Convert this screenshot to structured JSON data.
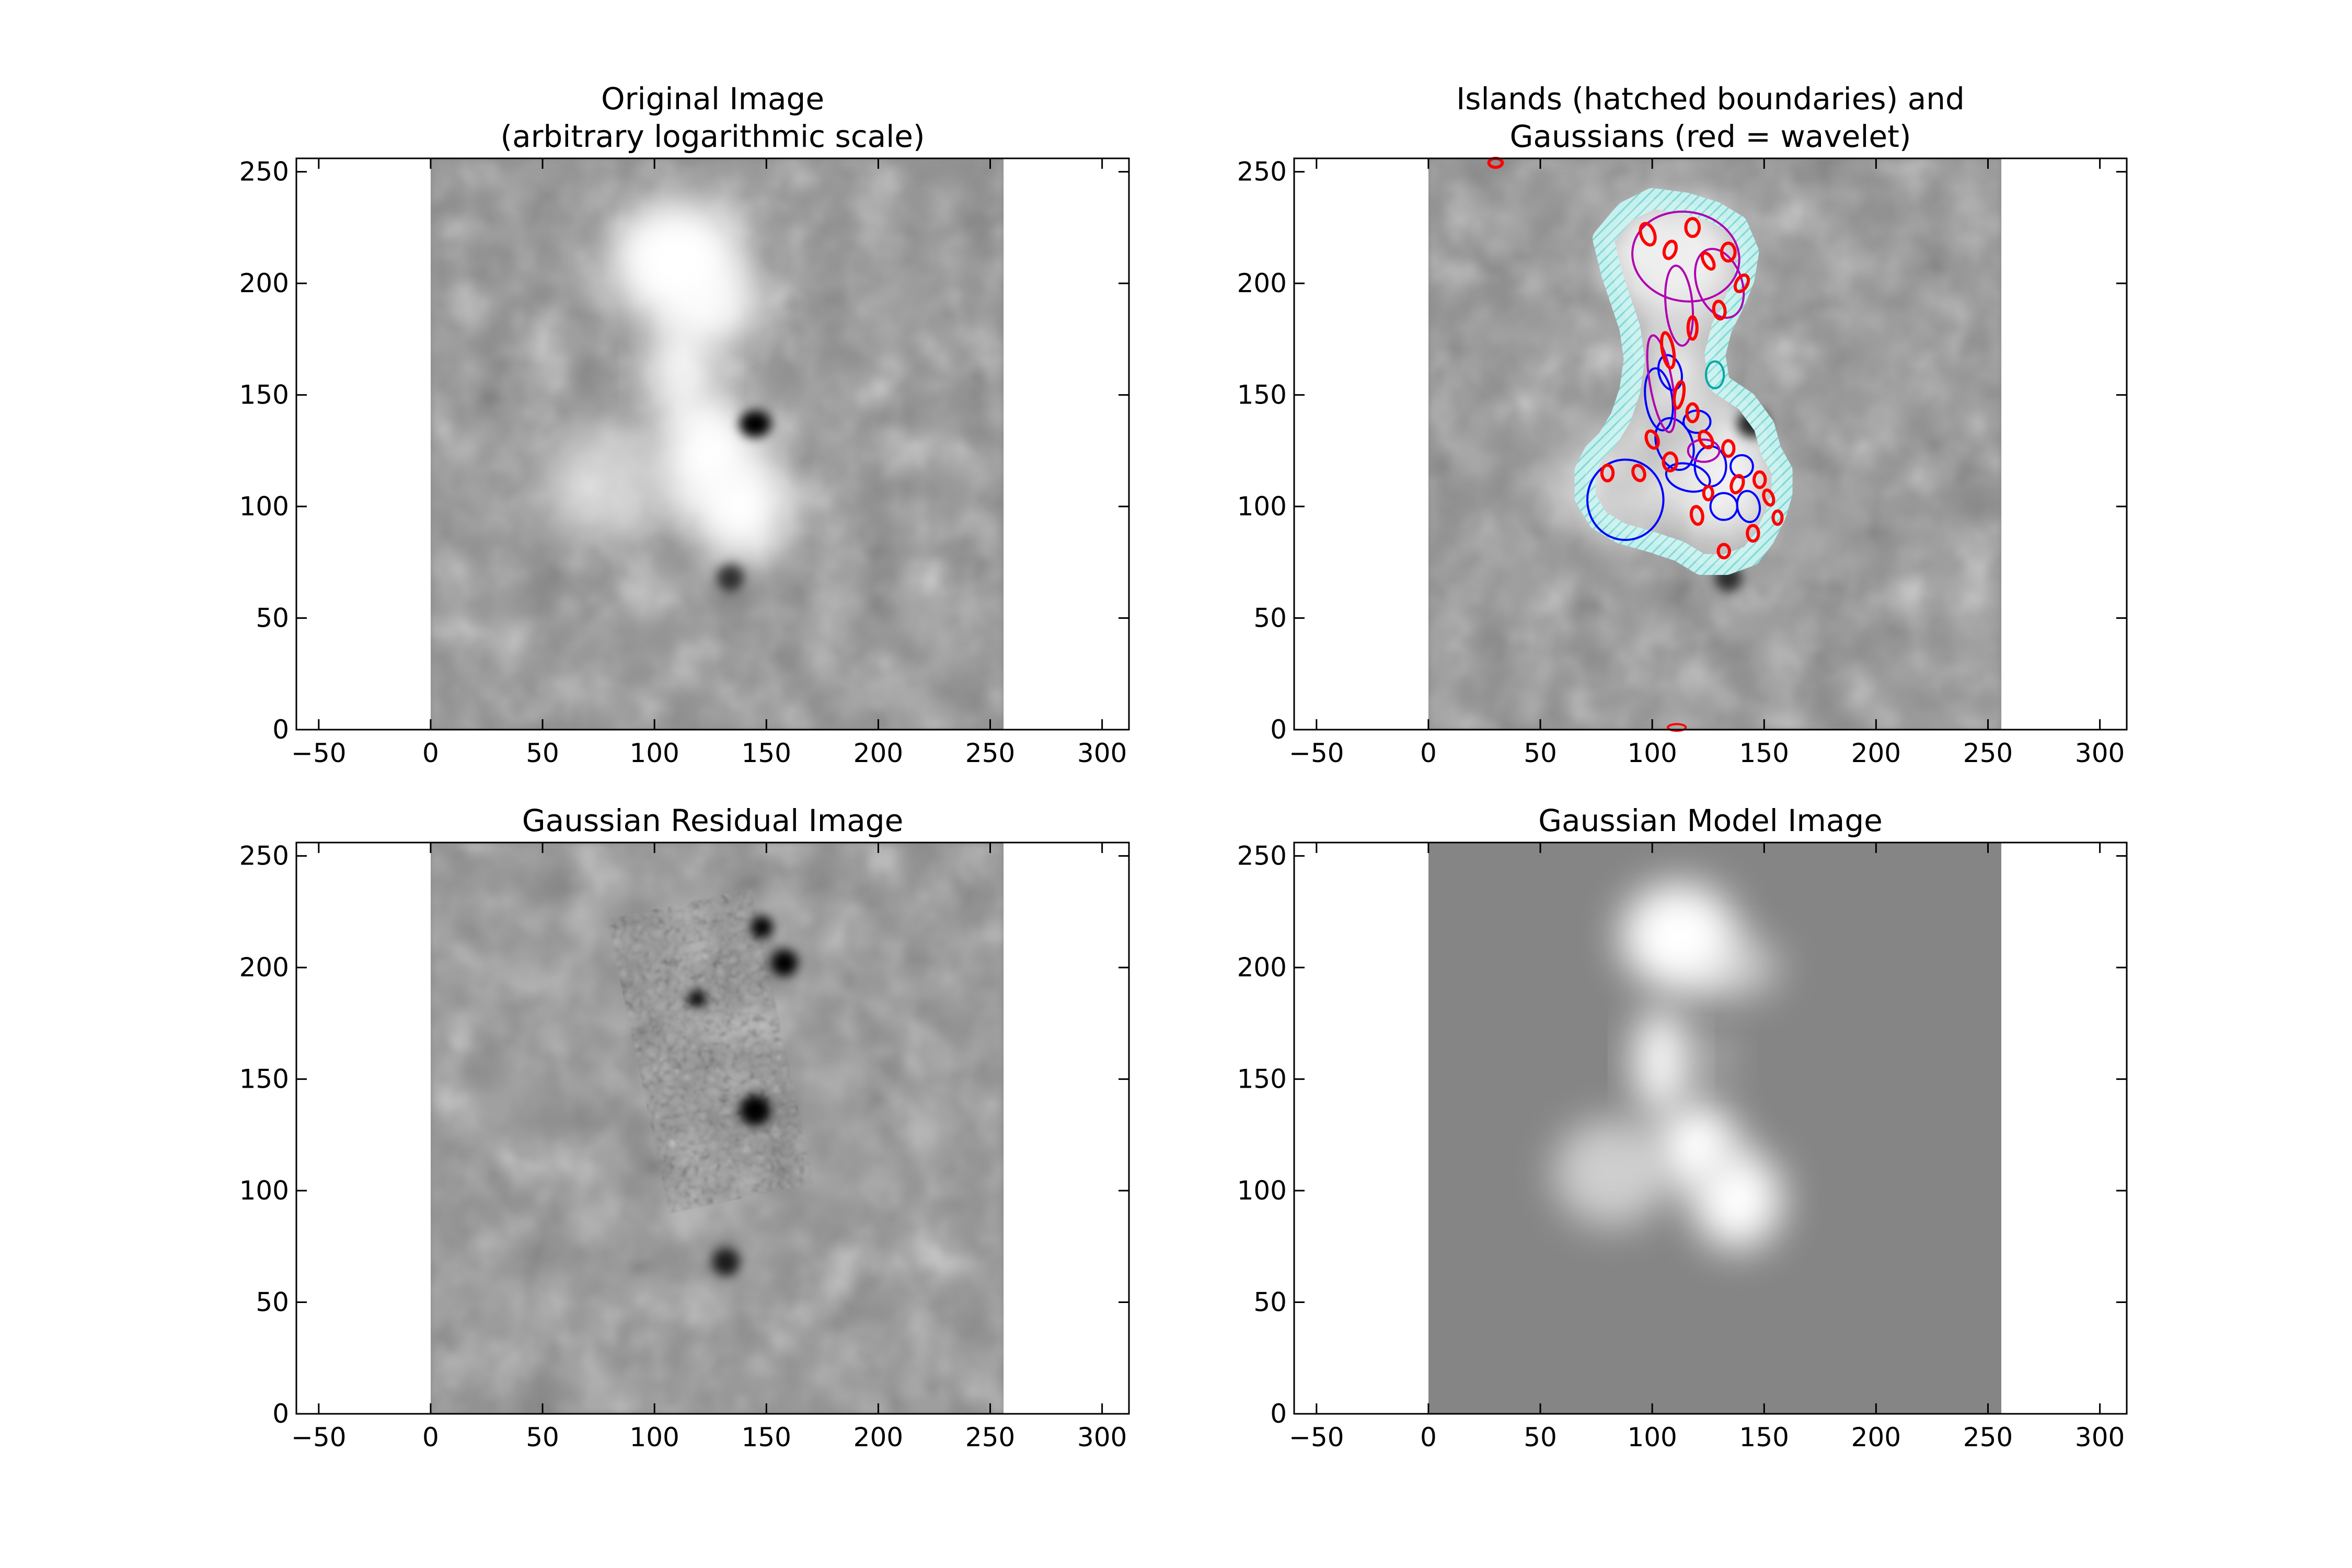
{
  "chart_data": [
    {
      "type": "heatmap",
      "title_lines": [
        "Original Image",
        "(arbitrary logarithmic scale)"
      ],
      "xlim": [
        -60,
        312
      ],
      "ylim": [
        0,
        256
      ],
      "image_extent": {
        "x": [
          0,
          256
        ],
        "y": [
          0,
          256
        ]
      },
      "xticks": [
        -50,
        0,
        50,
        100,
        150,
        200,
        250,
        300
      ],
      "yticks": [
        0,
        50,
        100,
        150,
        200,
        250
      ],
      "colormap": "gray",
      "background": "#8a8a8a",
      "features": [
        {
          "kind": "bright",
          "x": 110,
          "y": 210,
          "rx": 30,
          "ry": 28,
          "level": 1.0
        },
        {
          "kind": "bright",
          "x": 125,
          "y": 190,
          "rx": 22,
          "ry": 18,
          "level": 0.9
        },
        {
          "kind": "bright",
          "x": 112,
          "y": 160,
          "rx": 14,
          "ry": 24,
          "level": 0.95
        },
        {
          "kind": "bright",
          "x": 125,
          "y": 125,
          "rx": 22,
          "ry": 25,
          "level": 1.0
        },
        {
          "kind": "bright",
          "x": 138,
          "y": 100,
          "rx": 22,
          "ry": 24,
          "level": 1.0
        },
        {
          "kind": "bright",
          "x": 80,
          "y": 110,
          "rx": 28,
          "ry": 26,
          "level": 0.55
        },
        {
          "kind": "dark",
          "x": 145,
          "y": 137,
          "rx": 7,
          "ry": 6,
          "level": 1.0
        },
        {
          "kind": "dark",
          "x": 134,
          "y": 68,
          "rx": 6,
          "ry": 6,
          "level": 0.7
        }
      ],
      "overlays": []
    },
    {
      "type": "heatmap",
      "title_lines": [
        "Islands (hatched boundaries) and",
        "Gaussians (red = wavelet)"
      ],
      "xlim": [
        -60,
        312
      ],
      "ylim": [
        0,
        256
      ],
      "image_extent": {
        "x": [
          0,
          256
        ],
        "y": [
          0,
          256
        ]
      },
      "xticks": [
        -50,
        0,
        50,
        100,
        150,
        200,
        250,
        300
      ],
      "yticks": [
        0,
        50,
        100,
        150,
        200,
        250
      ],
      "colormap": "gray",
      "background": "#8a8a8a",
      "features": [
        {
          "kind": "bright",
          "x": 110,
          "y": 210,
          "rx": 30,
          "ry": 28,
          "level": 0.8
        },
        {
          "kind": "bright",
          "x": 112,
          "y": 160,
          "rx": 14,
          "ry": 24,
          "level": 0.75
        },
        {
          "kind": "bright",
          "x": 130,
          "y": 112,
          "rx": 25,
          "ry": 28,
          "level": 0.8
        },
        {
          "kind": "bright",
          "x": 80,
          "y": 110,
          "rx": 28,
          "ry": 26,
          "level": 0.45
        },
        {
          "kind": "dark",
          "x": 145,
          "y": 137,
          "rx": 7,
          "ry": 6,
          "level": 1.0
        },
        {
          "kind": "dark",
          "x": 134,
          "y": 68,
          "rx": 6,
          "ry": 6,
          "level": 0.7
        }
      ],
      "island_color": "#9fe3e0",
      "island_outline": [
        [
          78,
          220
        ],
        [
          88,
          232
        ],
        [
          100,
          238
        ],
        [
          115,
          236
        ],
        [
          128,
          232
        ],
        [
          138,
          226
        ],
        [
          143,
          214
        ],
        [
          141,
          202
        ],
        [
          137,
          192
        ],
        [
          131,
          180
        ],
        [
          128,
          168
        ],
        [
          130,
          155
        ],
        [
          142,
          147
        ],
        [
          150,
          136
        ],
        [
          153,
          125
        ],
        [
          158,
          116
        ],
        [
          158,
          106
        ],
        [
          155,
          96
        ],
        [
          150,
          86
        ],
        [
          144,
          78
        ],
        [
          133,
          74
        ],
        [
          122,
          74
        ],
        [
          112,
          80
        ],
        [
          100,
          84
        ],
        [
          86,
          88
        ],
        [
          76,
          94
        ],
        [
          70,
          104
        ],
        [
          70,
          116
        ],
        [
          74,
          124
        ],
        [
          80,
          130
        ],
        [
          86,
          140
        ],
        [
          90,
          152
        ],
        [
          92,
          166
        ],
        [
          90,
          180
        ],
        [
          86,
          192
        ],
        [
          82,
          204
        ]
      ],
      "overlays": [
        {
          "color": "#0000ff",
          "x": 88,
          "y": 103,
          "rx": 17,
          "ry": 18,
          "angle": 0
        },
        {
          "color": "#0000ff",
          "x": 103,
          "y": 148,
          "rx": 6,
          "ry": 14,
          "angle": 8
        },
        {
          "color": "#0000ff",
          "x": 110,
          "y": 128,
          "rx": 8,
          "ry": 12,
          "angle": 20
        },
        {
          "color": "#0000ff",
          "x": 116,
          "y": 113,
          "rx": 10,
          "ry": 6,
          "angle": -15
        },
        {
          "color": "#0000ff",
          "x": 126,
          "y": 118,
          "rx": 7,
          "ry": 9,
          "angle": 0
        },
        {
          "color": "#0000ff",
          "x": 132,
          "y": 100,
          "rx": 6,
          "ry": 6,
          "angle": 0
        },
        {
          "color": "#0000ff",
          "x": 143,
          "y": 100,
          "rx": 5,
          "ry": 7,
          "angle": 10
        },
        {
          "color": "#0000ff",
          "x": 140,
          "y": 118,
          "rx": 5,
          "ry": 5,
          "angle": 0
        },
        {
          "color": "#0000ff",
          "x": 120,
          "y": 138,
          "rx": 6,
          "ry": 5,
          "angle": 0
        },
        {
          "color": "#0000ff",
          "x": 108,
          "y": 160,
          "rx": 5,
          "ry": 8,
          "angle": 15
        },
        {
          "color": "#b000b0",
          "x": 115,
          "y": 212,
          "rx": 24,
          "ry": 20,
          "angle": -10
        },
        {
          "color": "#b000b0",
          "x": 130,
          "y": 200,
          "rx": 10,
          "ry": 16,
          "angle": 20
        },
        {
          "color": "#b000b0",
          "x": 112,
          "y": 190,
          "rx": 6,
          "ry": 18,
          "angle": 5
        },
        {
          "color": "#b000b0",
          "x": 104,
          "y": 155,
          "rx": 5,
          "ry": 22,
          "angle": 10
        },
        {
          "color": "#b000b0",
          "x": 123,
          "y": 125,
          "rx": 7,
          "ry": 5,
          "angle": 0
        },
        {
          "color": "#00a8a8",
          "x": 128,
          "y": 159,
          "rx": 4,
          "ry": 6,
          "angle": 0
        },
        {
          "color": "#ff0000",
          "x": 98,
          "y": 222,
          "rx": 3,
          "ry": 5,
          "angle": 20
        },
        {
          "color": "#ff0000",
          "x": 108,
          "y": 215,
          "rx": 2.5,
          "ry": 4,
          "angle": -20
        },
        {
          "color": "#ff0000",
          "x": 118,
          "y": 225,
          "rx": 3,
          "ry": 4,
          "angle": 0
        },
        {
          "color": "#ff0000",
          "x": 125,
          "y": 210,
          "rx": 2,
          "ry": 4,
          "angle": 30
        },
        {
          "color": "#ff0000",
          "x": 134,
          "y": 214,
          "rx": 3,
          "ry": 4,
          "angle": 0
        },
        {
          "color": "#ff0000",
          "x": 140,
          "y": 200,
          "rx": 2.5,
          "ry": 4,
          "angle": -30
        },
        {
          "color": "#ff0000",
          "x": 130,
          "y": 188,
          "rx": 2.5,
          "ry": 4,
          "angle": 10
        },
        {
          "color": "#ff0000",
          "x": 118,
          "y": 180,
          "rx": 2,
          "ry": 5,
          "angle": 0
        },
        {
          "color": "#ff0000",
          "x": 107,
          "y": 170,
          "rx": 2.5,
          "ry": 8,
          "angle": 10
        },
        {
          "color": "#ff0000",
          "x": 112,
          "y": 150,
          "rx": 2,
          "ry": 6,
          "angle": -10
        },
        {
          "color": "#ff0000",
          "x": 118,
          "y": 142,
          "rx": 2.5,
          "ry": 4,
          "angle": 0
        },
        {
          "color": "#ff0000",
          "x": 100,
          "y": 130,
          "rx": 2.5,
          "ry": 4,
          "angle": 20
        },
        {
          "color": "#ff0000",
          "x": 108,
          "y": 120,
          "rx": 3,
          "ry": 4,
          "angle": 0
        },
        {
          "color": "#ff0000",
          "x": 124,
          "y": 130,
          "rx": 2.5,
          "ry": 4,
          "angle": 30
        },
        {
          "color": "#ff0000",
          "x": 134,
          "y": 126,
          "rx": 2.5,
          "ry": 3.5,
          "angle": 0
        },
        {
          "color": "#ff0000",
          "x": 138,
          "y": 110,
          "rx": 2.5,
          "ry": 4,
          "angle": -20
        },
        {
          "color": "#ff0000",
          "x": 148,
          "y": 112,
          "rx": 2.5,
          "ry": 3.5,
          "angle": 0
        },
        {
          "color": "#ff0000",
          "x": 152,
          "y": 104,
          "rx": 2,
          "ry": 3.5,
          "angle": 20
        },
        {
          "color": "#ff0000",
          "x": 145,
          "y": 88,
          "rx": 2.5,
          "ry": 3.5,
          "angle": 0
        },
        {
          "color": "#ff0000",
          "x": 132,
          "y": 80,
          "rx": 2.5,
          "ry": 3,
          "angle": 0
        },
        {
          "color": "#ff0000",
          "x": 120,
          "y": 96,
          "rx": 2.5,
          "ry": 4,
          "angle": 10
        },
        {
          "color": "#ff0000",
          "x": 125,
          "y": 106,
          "rx": 2,
          "ry": 3,
          "angle": 0
        },
        {
          "color": "#ff0000",
          "x": 80,
          "y": 115,
          "rx": 2.5,
          "ry": 3.5,
          "angle": 0
        },
        {
          "color": "#ff0000",
          "x": 94,
          "y": 115,
          "rx": 2.5,
          "ry": 3.5,
          "angle": 20
        },
        {
          "color": "#ff0000",
          "x": 156,
          "y": 95,
          "rx": 2,
          "ry": 3,
          "angle": 0
        },
        {
          "color": "#ff0000",
          "x": 30,
          "y": 254,
          "rx": 3,
          "ry": 2,
          "angle": 0
        },
        {
          "color": "#ff0000",
          "x": 111,
          "y": 1,
          "rx": 4,
          "ry": 1.5,
          "angle": 0
        }
      ]
    },
    {
      "type": "heatmap",
      "title_lines": [
        "Gaussian Residual Image"
      ],
      "xlim": [
        -60,
        312
      ],
      "ylim": [
        0,
        256
      ],
      "image_extent": {
        "x": [
          0,
          256
        ],
        "y": [
          0,
          256
        ]
      },
      "xticks": [
        -50,
        0,
        50,
        100,
        150,
        200,
        250,
        300
      ],
      "yticks": [
        0,
        50,
        100,
        150,
        200,
        250
      ],
      "colormap": "gray",
      "background": "#8a8a8a",
      "features": [
        {
          "kind": "dark",
          "x": 148,
          "y": 218,
          "rx": 5,
          "ry": 5,
          "level": 1.0
        },
        {
          "kind": "dark",
          "x": 158,
          "y": 202,
          "rx": 6,
          "ry": 6,
          "level": 1.0
        },
        {
          "kind": "dark",
          "x": 119,
          "y": 186,
          "rx": 4,
          "ry": 4,
          "level": 1.0
        },
        {
          "kind": "dark",
          "x": 145,
          "y": 136,
          "rx": 7,
          "ry": 7,
          "level": 1.0
        },
        {
          "kind": "dark",
          "x": 132,
          "y": 68,
          "rx": 6,
          "ry": 6,
          "level": 0.8
        }
      ],
      "texture_region": {
        "x": [
          92,
          158
        ],
        "y": [
          95,
          230
        ]
      },
      "overlays": []
    },
    {
      "type": "heatmap",
      "title_lines": [
        "Gaussian Model Image"
      ],
      "xlim": [
        -60,
        312
      ],
      "ylim": [
        0,
        256
      ],
      "image_extent": {
        "x": [
          0,
          256
        ],
        "y": [
          0,
          256
        ]
      },
      "xticks": [
        -50,
        0,
        50,
        100,
        150,
        200,
        250,
        300
      ],
      "yticks": [
        0,
        50,
        100,
        150,
        200,
        250
      ],
      "colormap": "gray",
      "background": "#858585",
      "features": [
        {
          "kind": "bright",
          "x": 112,
          "y": 214,
          "rx": 26,
          "ry": 24,
          "level": 1.0
        },
        {
          "kind": "bright",
          "x": 135,
          "y": 200,
          "rx": 22,
          "ry": 14,
          "level": 0.55
        },
        {
          "kind": "bright",
          "x": 104,
          "y": 158,
          "rx": 12,
          "ry": 24,
          "level": 1.0
        },
        {
          "kind": "bright",
          "x": 127,
          "y": 160,
          "rx": 10,
          "ry": 9,
          "level": 0.35
        },
        {
          "kind": "bright",
          "x": 120,
          "y": 120,
          "rx": 18,
          "ry": 20,
          "level": 1.0
        },
        {
          "kind": "bright",
          "x": 138,
          "y": 96,
          "rx": 20,
          "ry": 22,
          "level": 1.0
        },
        {
          "kind": "bright",
          "x": 82,
          "y": 108,
          "rx": 26,
          "ry": 24,
          "level": 0.6
        }
      ],
      "overlays": []
    }
  ]
}
